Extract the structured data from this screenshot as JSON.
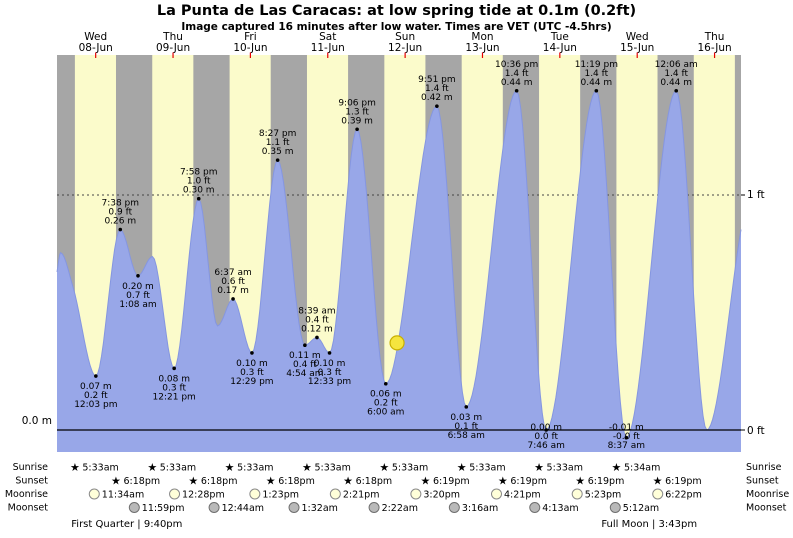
{
  "title": "La Punta de Las Caracas: at low spring tide at 0.1m (0.2ft)",
  "subtitle": "Image captured 16 minutes after low water. Times are VET (UTC -4.5hrs)",
  "axis": {
    "left_label": "0.0 m",
    "right_top": "1 ft",
    "right_bottom": "0 ft"
  },
  "row_labels": {
    "sunrise": "Sunrise",
    "sunset": "Sunset",
    "moonrise": "Moonrise",
    "moonset": "Moonset"
  },
  "colors": {
    "day_band": "#fbfbcb",
    "night_band": "#a6a6a6",
    "tide_fill": "#98a7e8",
    "tide_stroke": "#8596e0",
    "date_red": "#e60000",
    "sun_marker_fill": "#f5e53e",
    "sun_marker_stroke": "#c9b000",
    "sunrise_star": "#e8a820",
    "sunset_star": "#b56a1a",
    "moonrise_fill": "#ffffd9",
    "moonrise_stroke": "#8a8a8a",
    "moonset_fill": "#b9b9b9",
    "moonset_stroke": "#6e6e6e"
  },
  "chart_data": {
    "type": "area",
    "title": "Tide height curve, La Punta de Las Caracas, 08-Jun to 16-Jun",
    "hours_span": 212.2,
    "ylim_ft": [
      -0.15,
      1.55
    ],
    "daylight": {
      "start_h": 5.55,
      "end_h": 18.3
    },
    "days": [
      {
        "weekday": "Wed",
        "date": "08-Jun"
      },
      {
        "weekday": "Thu",
        "date": "09-Jun"
      },
      {
        "weekday": "Fri",
        "date": "10-Jun"
      },
      {
        "weekday": "Sat",
        "date": "11-Jun"
      },
      {
        "weekday": "Sun",
        "date": "12-Jun"
      },
      {
        "weekday": "Mon",
        "date": "13-Jun"
      },
      {
        "weekday": "Tue",
        "date": "14-Jun"
      },
      {
        "weekday": "Wed",
        "date": "15-Jun"
      },
      {
        "weekday": "Thu",
        "date": "16-Jun"
      }
    ],
    "tide_events": [
      {
        "t": 12.05,
        "h": 0.07,
        "pos": "below",
        "lines": [
          "0.07 m",
          "0.2 ft",
          "12:03 pm"
        ]
      },
      {
        "t": 19.63,
        "h": 0.26,
        "pos": "above",
        "lines": [
          "7:38 pm",
          "0.9 ft",
          "0.26 m"
        ]
      },
      {
        "t": 25.13,
        "h": 0.2,
        "pos": "below",
        "lines": [
          "0.20 m",
          "0.7 ft",
          "1:08 am"
        ]
      },
      {
        "t": 36.35,
        "h": 0.08,
        "pos": "below",
        "lines": [
          "0.08 m",
          "0.3 ft",
          "12:21 pm"
        ]
      },
      {
        "t": 43.97,
        "h": 0.3,
        "pos": "above",
        "lines": [
          "7:58 pm",
          "1.0 ft",
          "0.30 m"
        ]
      },
      {
        "t": 54.62,
        "h": 0.17,
        "pos": "above",
        "lines": [
          "6:37 am",
          "0.6 ft",
          "0.17 m"
        ]
      },
      {
        "t": 60.48,
        "h": 0.1,
        "pos": "below",
        "lines": [
          "0.10 m",
          "0.3 ft",
          "12:29 pm"
        ]
      },
      {
        "t": 68.45,
        "h": 0.35,
        "pos": "above",
        "lines": [
          "8:27 pm",
          "1.1 ft",
          "0.35 m"
        ]
      },
      {
        "t": 76.9,
        "h": 0.11,
        "pos": "below",
        "lines": [
          "0.11 m",
          "0.4 ft",
          "4:54 am"
        ]
      },
      {
        "t": 80.65,
        "h": 0.12,
        "pos": "above",
        "lines": [
          "8:39 am",
          "0.4 ft",
          "0.12 m"
        ]
      },
      {
        "t": 84.55,
        "h": 0.1,
        "pos": "below",
        "lines": [
          "0.10 m",
          "0.3 ft",
          "12:33 pm"
        ]
      },
      {
        "t": 93.1,
        "h": 0.39,
        "pos": "above",
        "lines": [
          "9:06 pm",
          "1.3 ft",
          "0.39 m"
        ]
      },
      {
        "t": 102.0,
        "h": 0.06,
        "pos": "below",
        "lines": [
          "0.06 m",
          "0.2 ft",
          "6:00 am"
        ]
      },
      {
        "t": 117.85,
        "h": 0.42,
        "pos": "above",
        "lines": [
          "9:51 pm",
          "1.4 ft",
          "0.42 m"
        ]
      },
      {
        "t": 126.97,
        "h": 0.03,
        "pos": "below",
        "lines": [
          "0.03 m",
          "0.1 ft",
          "6:58 am"
        ]
      },
      {
        "t": 142.6,
        "h": 0.44,
        "pos": "above",
        "lines": [
          "10:36 pm",
          "1.4 ft",
          "0.44 m"
        ]
      },
      {
        "t": 151.77,
        "h": 0.0,
        "pos": "below",
        "lines": [
          "0.00 m",
          "0.0 ft",
          "7:46 am"
        ]
      },
      {
        "t": 167.32,
        "h": 0.44,
        "pos": "above",
        "lines": [
          "11:19 pm",
          "1.4 ft",
          "0.44 m"
        ]
      },
      {
        "t": 176.62,
        "h": -0.01,
        "pos": "below",
        "lines": [
          "-0.01 m",
          "-0.0 ft",
          "8:37 am"
        ]
      },
      {
        "t": 192.1,
        "h": 0.44,
        "pos": "above",
        "lines": [
          "12:06 am",
          "1.4 ft",
          "0.44 m"
        ]
      }
    ],
    "curve_m": [
      [
        0,
        0.205
      ],
      [
        1.1,
        0.23
      ],
      [
        5,
        0.185
      ],
      [
        12.05,
        0.07
      ],
      [
        19.63,
        0.26
      ],
      [
        25.13,
        0.2
      ],
      [
        29.6,
        0.225
      ],
      [
        36.35,
        0.08
      ],
      [
        43.97,
        0.3
      ],
      [
        49.8,
        0.135
      ],
      [
        54.62,
        0.17
      ],
      [
        60.48,
        0.1
      ],
      [
        68.45,
        0.35
      ],
      [
        76.9,
        0.11
      ],
      [
        80.65,
        0.12
      ],
      [
        84.55,
        0.1
      ],
      [
        93.1,
        0.39
      ],
      [
        102.0,
        0.06
      ],
      [
        117.85,
        0.42
      ],
      [
        126.97,
        0.03
      ],
      [
        142.6,
        0.44
      ],
      [
        151.77,
        0.0
      ],
      [
        167.32,
        0.44
      ],
      [
        176.62,
        -0.01
      ],
      [
        192.1,
        0.44
      ],
      [
        201.6,
        0.0
      ],
      [
        212.2,
        0.26
      ]
    ],
    "sun_marker": {
      "t": 105.5,
      "h": 0.113
    },
    "astro": {
      "sunrise": [
        {
          "day": 0,
          "time": "5:33am"
        },
        {
          "day": 1,
          "time": "5:33am"
        },
        {
          "day": 2,
          "time": "5:33am"
        },
        {
          "day": 3,
          "time": "5:33am"
        },
        {
          "day": 4,
          "time": "5:33am"
        },
        {
          "day": 5,
          "time": "5:33am"
        },
        {
          "day": 6,
          "time": "5:33am"
        },
        {
          "day": 7,
          "time": "5:34am"
        }
      ],
      "sunset": [
        {
          "day": 0,
          "time": "6:18pm"
        },
        {
          "day": 1,
          "time": "6:18pm"
        },
        {
          "day": 2,
          "time": "6:18pm"
        },
        {
          "day": 3,
          "time": "6:18pm"
        },
        {
          "day": 4,
          "time": "6:19pm"
        },
        {
          "day": 5,
          "time": "6:19pm"
        },
        {
          "day": 6,
          "time": "6:19pm"
        },
        {
          "day": 7,
          "time": "6:19pm"
        }
      ],
      "moonrise": [
        {
          "day": 0,
          "time": "11:34am"
        },
        {
          "day": 1,
          "time": "12:28pm"
        },
        {
          "day": 2,
          "time": "1:23pm"
        },
        {
          "day": 3,
          "time": "2:21pm"
        },
        {
          "day": 4,
          "time": "3:20pm"
        },
        {
          "day": 5,
          "time": "4:21pm"
        },
        {
          "day": 6,
          "time": "5:23pm"
        },
        {
          "day": 7,
          "time": "6:22pm"
        }
      ],
      "moonset": [
        {
          "day": 0,
          "time": "11:59pm"
        },
        {
          "day": 2,
          "time": "12:44am"
        },
        {
          "day": 3,
          "time": "1:32am"
        },
        {
          "day": 4,
          "time": "2:22am"
        },
        {
          "day": 5,
          "time": "3:16am"
        },
        {
          "day": 6,
          "time": "4:13am"
        },
        {
          "day": 7,
          "time": "5:12am"
        }
      ]
    },
    "moon_phases": [
      {
        "label": "First Quarter | 9:40pm",
        "t": 21.67
      },
      {
        "label": "Full Moon | 3:43pm",
        "t": 183.72
      }
    ]
  }
}
